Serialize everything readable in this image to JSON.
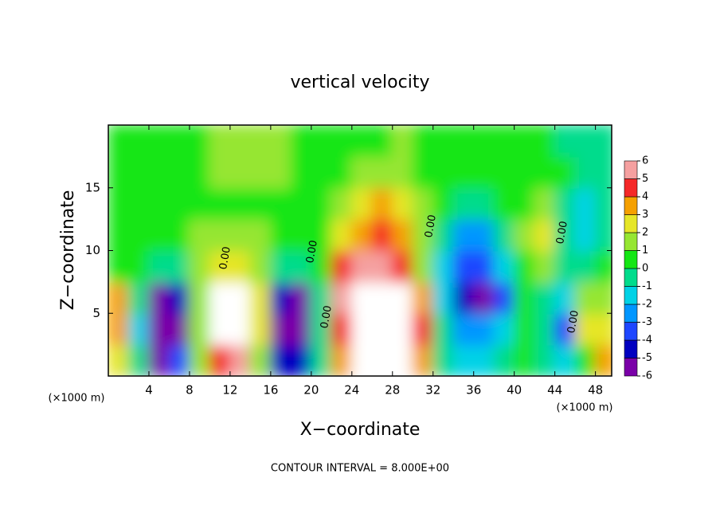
{
  "chart_data": {
    "type": "heatmap",
    "title": "vertical velocity",
    "x_label": "X−coordinate",
    "y_label": "Z−coordinate",
    "x_unit_label": "(×1000 m)",
    "footer": "CONTOUR INTERVAL = 8.000E+00",
    "contour_label": "0.00",
    "xlim": [
      0,
      49.6
    ],
    "xticks": [
      4,
      8,
      12,
      16,
      20,
      24,
      28,
      32,
      36,
      40,
      44,
      48
    ],
    "ylim": [
      0,
      20
    ],
    "yticks": [
      5,
      10,
      15
    ],
    "x": [
      1,
      3,
      5,
      7,
      9,
      11,
      13,
      15,
      17,
      19,
      21,
      23,
      25,
      27,
      29,
      31,
      33,
      35,
      37,
      39,
      41,
      43,
      45,
      47,
      49
    ],
    "z": [
      1.25,
      3.75,
      6.25,
      8.75,
      11.25,
      13.75,
      16.25,
      18.75
    ],
    "values": [
      [
        2,
        -1,
        -6,
        -4,
        1,
        4,
        5,
        1,
        -5,
        -5,
        -1,
        3,
        6,
        6,
        6,
        3,
        -1,
        -2,
        -2,
        -1,
        0,
        -1,
        -2,
        0,
        3
      ],
      [
        3,
        -2,
        -6,
        -6,
        1,
        6,
        6,
        2,
        -6,
        -6,
        -1,
        4,
        6,
        6,
        6,
        4,
        -1,
        -3,
        -3,
        -2,
        0,
        -1,
        -4,
        2,
        2
      ],
      [
        3,
        -1,
        -6,
        -5,
        1,
        6,
        6,
        2,
        -5,
        -6,
        -1,
        5,
        6,
        6,
        6,
        3,
        -2,
        -5,
        -6,
        -4,
        0,
        -1,
        -2,
        1,
        1
      ],
      [
        0,
        0,
        -1,
        -1,
        1,
        2,
        2,
        1,
        -1,
        -1,
        0,
        4,
        5,
        5,
        4,
        1,
        -2,
        -4,
        -4,
        -2,
        0,
        1,
        -1,
        -1,
        0
      ],
      [
        0,
        0,
        0,
        0,
        1,
        1,
        1,
        1,
        0,
        0,
        0,
        2,
        3,
        4,
        3,
        1,
        -1,
        -3,
        -3,
        -1,
        1,
        2,
        -1,
        -2,
        -1
      ],
      [
        0,
        0,
        0,
        0,
        0,
        0,
        0,
        0,
        0,
        0,
        0,
        1,
        2,
        3,
        2,
        1,
        0,
        -1,
        -1,
        0,
        0,
        1,
        -1,
        -2,
        -1
      ],
      [
        0,
        0,
        0,
        0,
        0,
        1,
        1,
        1,
        1,
        0,
        0,
        0,
        1,
        1,
        1,
        0,
        0,
        0,
        0,
        0,
        0,
        0,
        0,
        -1,
        -1
      ],
      [
        0,
        0,
        0,
        0,
        0,
        1,
        1,
        1,
        1,
        0,
        0,
        0,
        0,
        0,
        1,
        0,
        0,
        0,
        0,
        0,
        0,
        0,
        -1,
        -1,
        -1
      ]
    ],
    "colorbar": {
      "levels": [
        -6,
        -5,
        -4,
        -3,
        -2,
        -1,
        0,
        1,
        2,
        3,
        4,
        5,
        6
      ],
      "colors": [
        "#7a00a8",
        "#0000c0",
        "#1e46ff",
        "#0096ff",
        "#00d2e6",
        "#00dc8c",
        "#14e614",
        "#96e632",
        "#e6e628",
        "#f5a000",
        "#f52828",
        "#f5a0a0"
      ],
      "above_color": "#ffffff"
    }
  }
}
